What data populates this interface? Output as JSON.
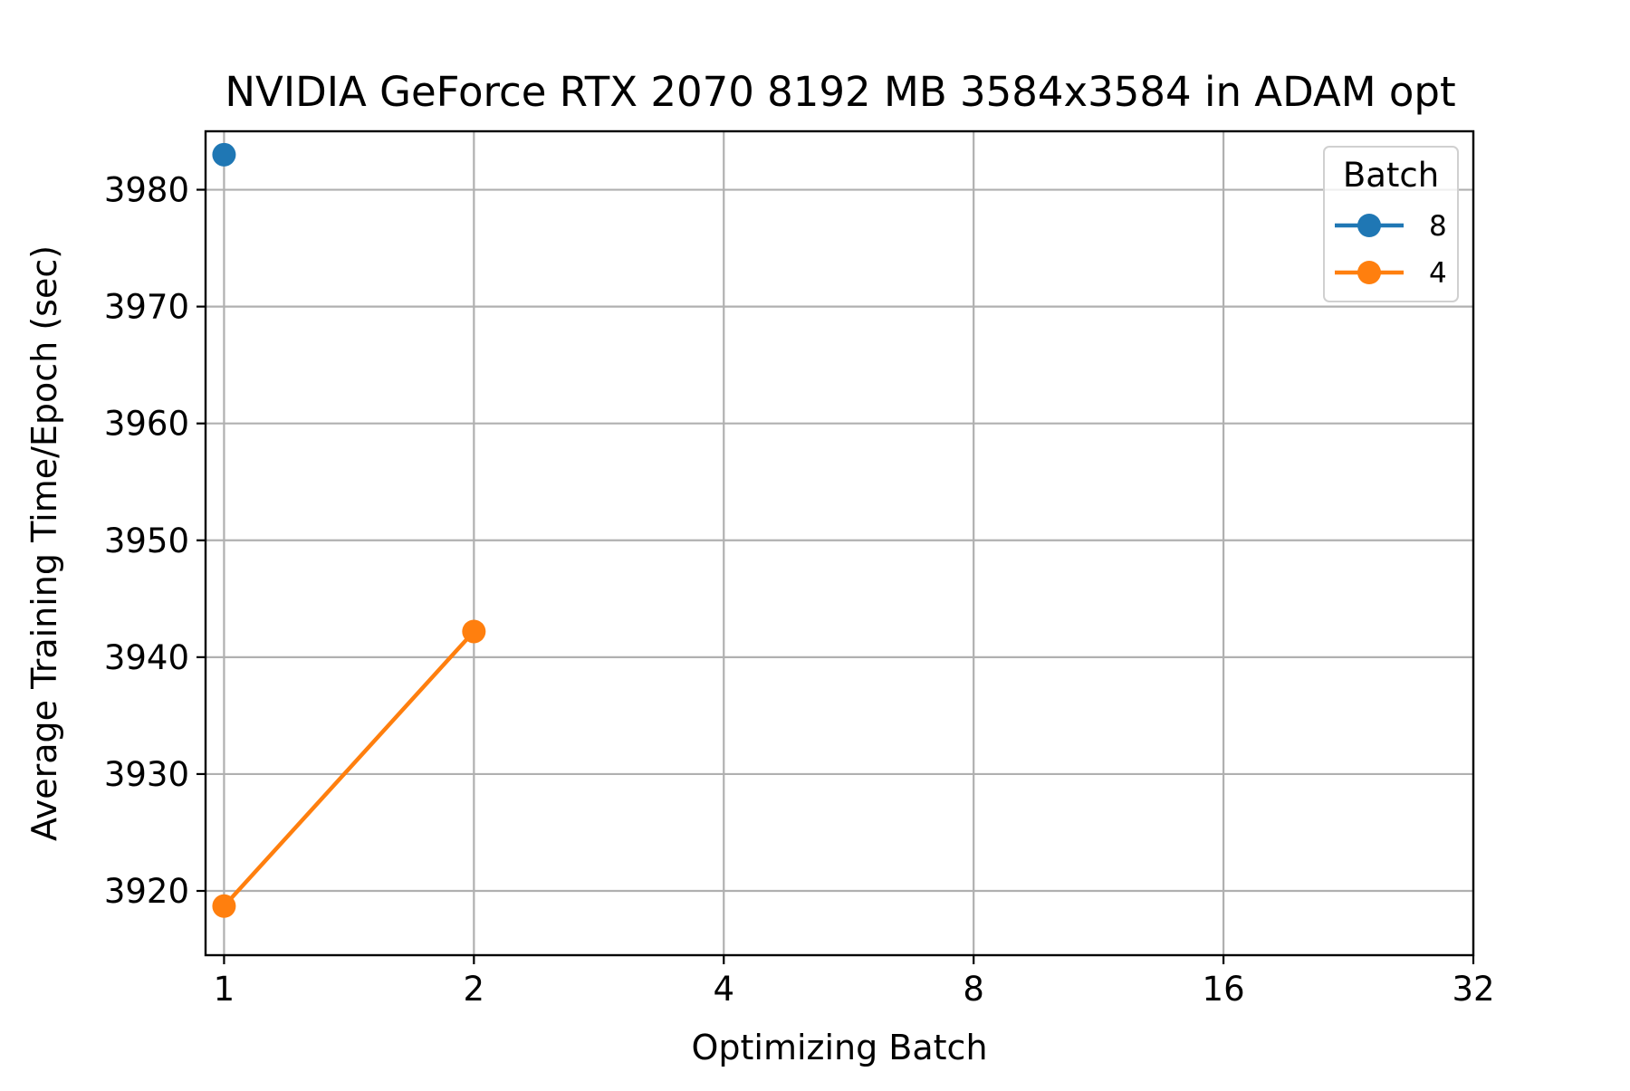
{
  "chart_data": {
    "type": "line",
    "title": "NVIDIA GeForce RTX 2070 8192 MB 3584x3584 in ADAM opt",
    "xlabel": "Optimizing Batch",
    "ylabel": "Average Training Time/Epoch (sec)",
    "x_scale": "log2",
    "x_ticks": [
      1,
      2,
      4,
      8,
      16,
      32
    ],
    "x_tick_labels": [
      "1",
      "2",
      "4",
      "8",
      "16",
      "32"
    ],
    "xlim": [
      0.95,
      32
    ],
    "ylim": [
      3914.5,
      3985
    ],
    "y_ticks": [
      3920,
      3930,
      3940,
      3950,
      3960,
      3970,
      3980
    ],
    "y_tick_labels": [
      "3920",
      "3930",
      "3940",
      "3950",
      "3960",
      "3970",
      "3980"
    ],
    "grid": true,
    "legend": {
      "title": "Batch",
      "placement": "top-right"
    },
    "series": [
      {
        "name": "8",
        "color": "#1f77b4",
        "x": [
          1
        ],
        "y": [
          3983
        ]
      },
      {
        "name": "4",
        "color": "#ff7f0e",
        "x": [
          1,
          2
        ],
        "y": [
          3918.7,
          3942.2
        ]
      }
    ]
  }
}
